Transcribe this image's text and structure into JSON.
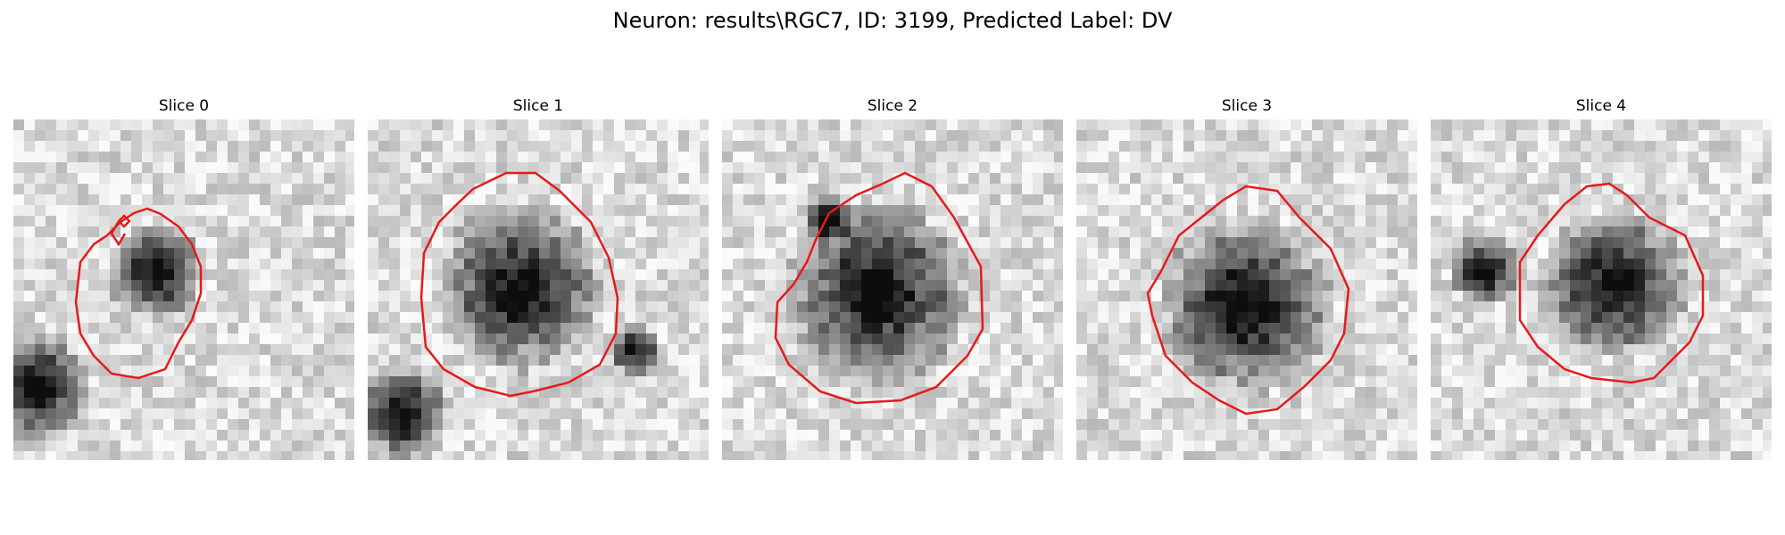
{
  "figure": {
    "title": "Neuron: results\\RGC7, ID: 3199, Predicted Label: DV",
    "contour_color": "#e8191a",
    "panels": [
      {
        "title": "Slice 0",
        "image_description": "grayscale microscopy crop with a dark blob offset to upper-right of the red outline"
      },
      {
        "title": "Slice 1",
        "image_description": "grayscale microscopy crop with a large dark round cell outlined in red"
      },
      {
        "title": "Slice 2",
        "image_description": "grayscale microscopy crop with a large dark cell outlined in red"
      },
      {
        "title": "Slice 3",
        "image_description": "grayscale microscopy crop with a textured dark cell outlined in red"
      },
      {
        "title": "Slice 4",
        "image_description": "grayscale microscopy crop with a smaller dark cell outlined in red"
      }
    ]
  }
}
